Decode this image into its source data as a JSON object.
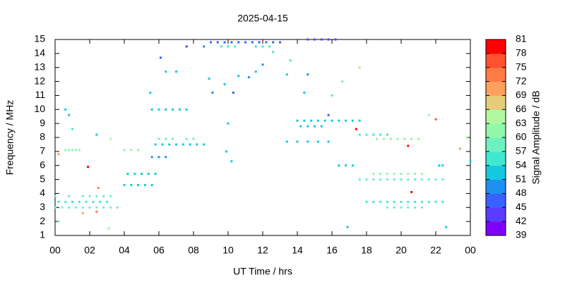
{
  "chart_data": {
    "type": "scatter",
    "title": "2025-04-15",
    "x_label": "UT Time / hrs",
    "y_label": "Frequency / MHz",
    "xlim": [
      0,
      24
    ],
    "xticks": [
      {
        "value": 0,
        "label": "00"
      },
      {
        "value": 2,
        "label": "02"
      },
      {
        "value": 4,
        "label": "04"
      },
      {
        "value": 6,
        "label": "06"
      },
      {
        "value": 8,
        "label": "08"
      },
      10,
      12,
      14,
      16,
      18,
      20,
      22,
      {
        "value": 24,
        "label": "00"
      }
    ],
    "ylim": [
      1,
      15
    ],
    "yticks": [
      1,
      2,
      3,
      4,
      5,
      6,
      7,
      8,
      9,
      10,
      11,
      12,
      13,
      14,
      15
    ],
    "colorbar": {
      "label": "Signal Amplitude / dB",
      "lim": [
        39,
        81
      ],
      "ticks": [
        39,
        42,
        45,
        48,
        51,
        54,
        57,
        60,
        63,
        66,
        69,
        72,
        75,
        78,
        81
      ],
      "colors": [
        "#8000ff",
        "#5a3cff",
        "#3a60ff",
        "#1e90f0",
        "#14c8e0",
        "#40e8d0",
        "#6ff0c0",
        "#90f8a8",
        "#b0f8a0",
        "#e6cc78",
        "#ffa060",
        "#ff7a45",
        "#ff5030",
        "#ff0000"
      ]
    },
    "x": [
      0,
      0.4,
      0.8,
      1.2,
      1.6,
      2.0,
      2.4,
      2.8,
      3.2,
      3.6,
      0.2,
      0.6,
      1.0,
      1.4,
      1.8,
      2.2,
      2.6,
      3.0,
      0,
      0.8,
      1.6,
      2.0,
      2.4,
      2.8,
      3.2,
      0.6,
      0.8,
      1.0,
      1.2,
      1.4,
      4.0,
      4.4,
      4.8,
      4.0,
      4.4,
      4.8,
      5.2,
      5.6,
      4.2,
      4.6,
      5.0,
      5.4,
      5.8,
      5.8,
      6.2,
      6.6,
      7.0,
      7.4,
      7.8,
      8.2,
      8.6,
      6.0,
      6.4,
      6.8,
      7.6,
      8.0,
      5.6,
      6.0,
      6.4,
      5.6,
      6.0,
      6.4,
      6.8,
      7.2,
      7.6,
      9.0,
      9.4,
      9.8,
      10.2,
      10.6,
      11.0,
      11.4,
      11.8,
      12.2,
      12.6,
      13.0,
      9.6,
      10.0,
      10.4,
      11.6,
      12.0,
      12.4,
      14.6,
      15.0,
      15.4,
      15.8,
      16.2,
      14.0,
      14.4,
      14.8,
      15.2,
      15.6,
      16.0,
      16.4,
      16.8,
      17.2,
      17.6,
      14.2,
      14.6,
      15.0,
      15.4,
      13.4,
      14.0,
      14.6,
      15.2,
      15.8,
      17.6,
      18.0,
      18.4,
      18.8,
      19.2,
      18.6,
      19.0,
      19.4,
      19.8,
      20.2,
      20.6,
      21.0,
      18.4,
      18.8,
      19.2,
      19.6,
      20.0,
      20.4,
      20.8,
      21.2,
      17.6,
      18.0,
      18.4,
      18.8,
      19.2,
      19.6,
      20.0,
      20.4,
      20.8,
      21.2,
      21.6,
      22.0,
      22.4,
      18.0,
      18.4,
      18.8,
      19.2,
      19.6,
      20.0,
      20.4,
      20.8,
      21.2,
      21.6,
      22.0,
      22.4,
      19.2,
      19.6,
      20.0,
      20.4,
      20.8,
      21.2,
      16.4,
      16.8,
      17.2,
      22.2,
      22.4,
      0.6,
      0.8,
      1.0,
      2.4,
      3.2,
      1.9,
      2.5,
      0.2,
      5.5,
      6.4,
      7.0,
      6.1,
      7.6,
      8.6,
      8.9,
      9.1,
      9.8,
      10.0,
      9.9,
      10.2,
      10.3,
      10.6,
      11.2,
      11.6,
      12.0,
      12.6,
      13.6,
      13.4,
      14.6,
      14.4,
      16.0,
      16.6,
      17.6,
      15.8,
      17.4,
      20.6,
      20.4,
      22.0,
      21.6,
      22.6,
      16.9,
      23.8,
      23.4,
      24.0,
      0.2,
      3.1,
      2.4,
      1.6
    ],
    "y": [
      3,
      3,
      3,
      3,
      3,
      3,
      3,
      3,
      3,
      3,
      3.4,
      3.4,
      3.4,
      3.4,
      3.4,
      3.4,
      3.4,
      3.4,
      3.8,
      3.8,
      3.8,
      3.8,
      3.8,
      3.8,
      3.8,
      7.1,
      7.1,
      7.1,
      7.1,
      7.1,
      7.1,
      7.1,
      7.1,
      4.6,
      4.6,
      4.6,
      4.6,
      4.6,
      5.4,
      5.4,
      5.4,
      5.4,
      5.4,
      7.5,
      7.5,
      7.5,
      7.5,
      7.5,
      7.5,
      7.5,
      7.5,
      7.9,
      7.9,
      7.9,
      7.9,
      7.9,
      6.6,
      6.6,
      6.6,
      10,
      10,
      10,
      10,
      10,
      10,
      14.8,
      14.8,
      14.8,
      14.8,
      14.8,
      14.8,
      14.8,
      14.8,
      14.8,
      14.8,
      14.8,
      14.5,
      14.5,
      14.5,
      14.5,
      14.5,
      14.5,
      15,
      15,
      15,
      15,
      15,
      9.2,
      9.2,
      9.2,
      9.2,
      9.2,
      9.2,
      9.2,
      9.2,
      9.2,
      9.2,
      8.8,
      8.8,
      8.8,
      8.8,
      7.7,
      7.7,
      7.7,
      7.7,
      7.7,
      8.2,
      8.2,
      8.2,
      8.2,
      8.2,
      7.9,
      7.9,
      7.9,
      7.9,
      7.9,
      7.9,
      7.9,
      5.4,
      5.4,
      5.4,
      5.4,
      5.4,
      5.4,
      5.4,
      5.4,
      5,
      5,
      5,
      5,
      5,
      5,
      5,
      5,
      5,
      5,
      5,
      5,
      5,
      3.4,
      3.4,
      3.4,
      3.4,
      3.4,
      3.4,
      3.4,
      3.4,
      3.4,
      3.4,
      3.4,
      3.4,
      3,
      3,
      3,
      3,
      3,
      3,
      6,
      6,
      6,
      6,
      6,
      10,
      9.6,
      8.6,
      8.2,
      7.9,
      5.9,
      4.4,
      6.8,
      11.2,
      12.7,
      12.7,
      13.7,
      14.5,
      14.5,
      12.2,
      11.2,
      11.8,
      9.0,
      7.0,
      6.3,
      11.2,
      12.4,
      12.3,
      12.7,
      13.2,
      14.1,
      13.5,
      12.5,
      12.5,
      11.2,
      11.0,
      12.0,
      13.0,
      9.6,
      8.6,
      4.1,
      7.4,
      9.3,
      9.6,
      1.6,
      1.6,
      8.0,
      7.2,
      6.3,
      2.0,
      1.5,
      2.7,
      2.6
    ],
    "values": [
      57,
      57,
      57,
      57,
      57,
      57,
      57,
      57,
      57,
      57,
      54,
      54,
      54,
      54,
      54,
      54,
      54,
      54,
      57,
      57,
      57,
      57,
      57,
      57,
      57,
      60,
      60,
      60,
      60,
      60,
      60,
      60,
      60,
      51,
      51,
      51,
      51,
      51,
      51,
      51,
      51,
      51,
      51,
      51,
      51,
      51,
      51,
      51,
      51,
      51,
      51,
      57,
      57,
      57,
      57,
      57,
      48,
      48,
      48,
      51,
      51,
      51,
      51,
      51,
      51,
      45,
      45,
      45,
      45,
      45,
      45,
      45,
      45,
      45,
      45,
      45,
      54,
      54,
      54,
      54,
      54,
      54,
      42,
      42,
      42,
      42,
      42,
      51,
      51,
      51,
      51,
      51,
      51,
      51,
      51,
      51,
      51,
      51,
      51,
      51,
      51,
      51,
      51,
      51,
      51,
      51,
      54,
      54,
      54,
      54,
      54,
      60,
      60,
      60,
      60,
      60,
      60,
      60,
      60,
      60,
      60,
      60,
      60,
      60,
      60,
      60,
      57,
      57,
      57,
      57,
      57,
      57,
      57,
      57,
      57,
      57,
      57,
      57,
      57,
      54,
      54,
      54,
      54,
      54,
      54,
      54,
      54,
      54,
      54,
      54,
      54,
      57,
      57,
      57,
      57,
      57,
      57,
      51,
      51,
      51,
      51,
      51,
      51,
      51,
      54,
      51,
      63,
      78,
      72,
      69,
      51,
      51,
      51,
      45,
      42,
      48,
      51,
      48,
      51,
      51,
      51,
      51,
      45,
      51,
      48,
      51,
      48,
      54,
      54,
      51,
      48,
      51,
      54,
      57,
      66,
      45,
      78,
      78,
      78,
      75,
      60,
      51,
      51,
      60,
      69,
      51,
      57,
      60,
      72,
      69
    ]
  }
}
